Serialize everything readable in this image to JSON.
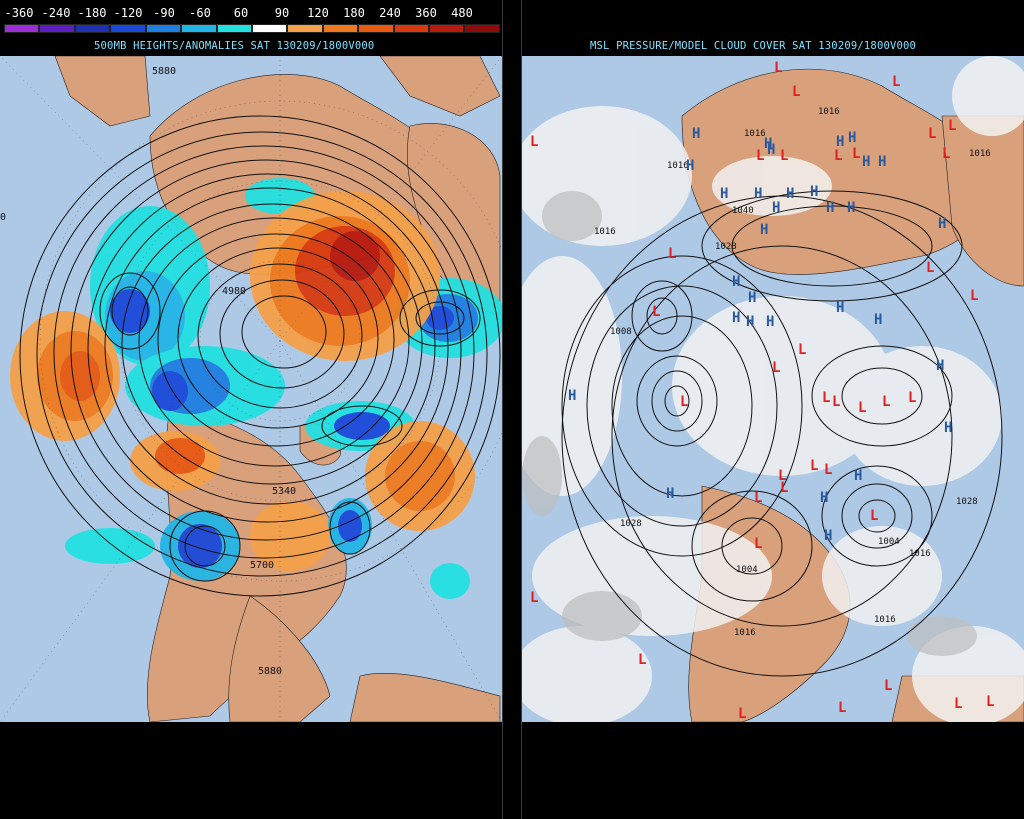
{
  "legend": {
    "labels": [
      "-360",
      "-240",
      "-180",
      "-120",
      "-90",
      "-60",
      "60",
      "90",
      "120",
      "180",
      "240",
      "360",
      "480"
    ],
    "colors": [
      "#9c2fd6",
      "#5b1fbf",
      "#1f2fb0",
      "#1a49d9",
      "#1e7fe0",
      "#22b6e6",
      "#22e0e0",
      "#ffffff",
      "#f5a04a",
      "#ef7a1d",
      "#e85a12",
      "#d83a10",
      "#b81a0e",
      "#8e0b0b"
    ]
  },
  "left_map": {
    "title": "500MB HEIGHTS/ANOMALIES SAT 130209/1800V000",
    "contour_labels": [
      "5880",
      "4980",
      "5340",
      "5700",
      "5880"
    ],
    "side_label": "0"
  },
  "right_map": {
    "title": "MSL PRESSURE/MODEL CLOUD COVER SAT 130209/1800V000",
    "pressure_labels": [
      "1016",
      "1016",
      "1016",
      "1016",
      "1040",
      "1028",
      "1008",
      "1016",
      "1028",
      "1028",
      "1004",
      "1016",
      "1016",
      "1016",
      "1004"
    ],
    "high_symbol": "H",
    "low_symbol": "L"
  },
  "colors": {
    "ocean": "#aec9e6",
    "land": "#d9a07c",
    "contour": "#111111",
    "title_text": "#7fe1ff",
    "high": "#2a5a9e",
    "low": "#e02020",
    "cloud": "#f2f2f2"
  }
}
